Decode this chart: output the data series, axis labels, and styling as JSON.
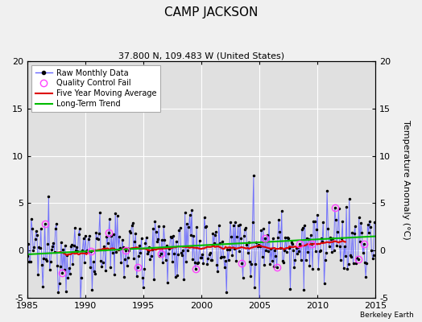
{
  "title": "CAMP JACKSON",
  "subtitle": "37.800 N, 109.483 W (United States)",
  "ylabel_right": "Temperature Anomaly (°C)",
  "attribution": "Berkeley Earth",
  "xlim": [
    1985,
    2015
  ],
  "ylim": [
    -5,
    20
  ],
  "yticks": [
    -5,
    0,
    5,
    10,
    15,
    20
  ],
  "xticks": [
    1985,
    1990,
    1995,
    2000,
    2005,
    2010,
    2015
  ],
  "bg_color": "#e8e8e8",
  "line_color": "#6666ff",
  "dot_color": "#000000",
  "ma_color": "#dd0000",
  "trend_color": "#00bb00",
  "qc_color": "#ff44ff",
  "seed": 12345,
  "title_fontsize": 11,
  "subtitle_fontsize": 8,
  "tick_fontsize": 8,
  "legend_fontsize": 7
}
